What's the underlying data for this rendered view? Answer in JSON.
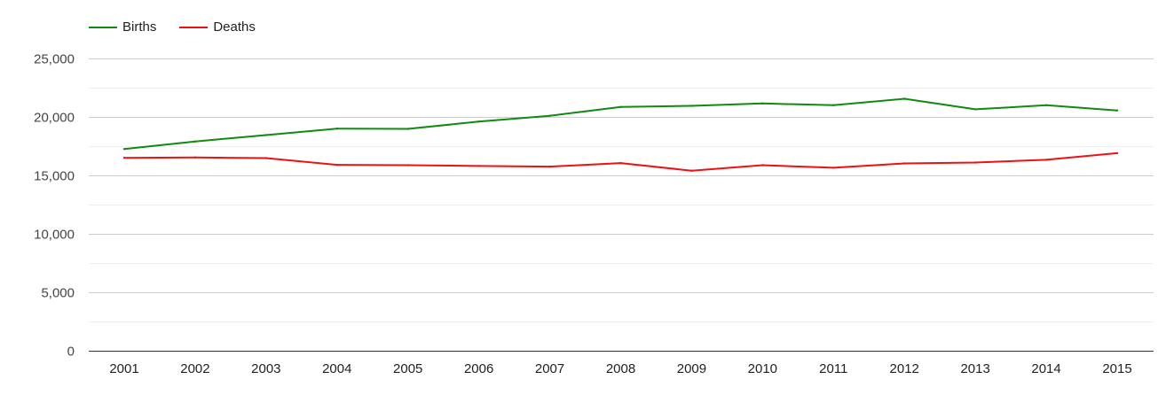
{
  "chart_data": {
    "type": "line",
    "title": "",
    "xlabel": "",
    "ylabel": "",
    "categories": [
      "2001",
      "2002",
      "2003",
      "2004",
      "2005",
      "2006",
      "2007",
      "2008",
      "2009",
      "2010",
      "2011",
      "2012",
      "2013",
      "2014",
      "2015"
    ],
    "ylim": [
      0,
      25000
    ],
    "yticks": [
      0,
      5000,
      10000,
      15000,
      20000,
      25000
    ],
    "ytick_labels": [
      "0",
      "5,000",
      "10,000",
      "15,000",
      "20,000",
      "25,000"
    ],
    "grid": true,
    "legend_position": "top-left",
    "series": [
      {
        "name": "Births",
        "color": "#108a10",
        "values": [
          17250,
          17900,
          18450,
          19000,
          18980,
          19600,
          20100,
          20850,
          20950,
          21150,
          21000,
          21550,
          20650,
          21000,
          20550
        ]
      },
      {
        "name": "Deaths",
        "color": "#ee1111",
        "values": [
          16500,
          16530,
          16480,
          15900,
          15870,
          15800,
          15750,
          16050,
          15400,
          15870,
          15650,
          16020,
          16100,
          16330,
          16900
        ]
      }
    ]
  }
}
